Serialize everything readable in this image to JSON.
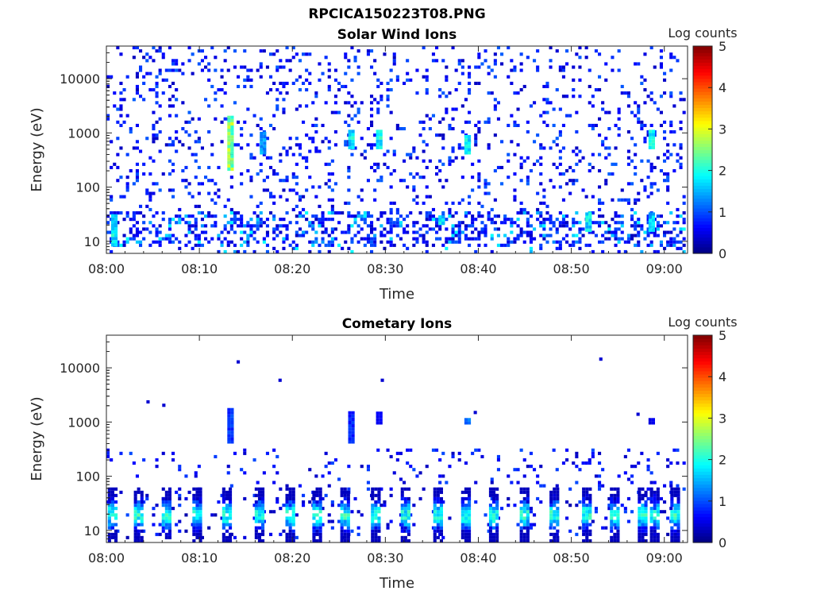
{
  "figure_title": "RPCICA150223T08.PNG",
  "chart_data": [
    {
      "type": "heatmap",
      "title": "Solar Wind Ions",
      "xlabel": "Time",
      "ylabel": "Energy (eV)",
      "x_tick_labels": [
        "08:00",
        "08:10",
        "08:20",
        "08:30",
        "08:40",
        "08:50",
        "09:00"
      ],
      "x_tick_minutes": [
        0,
        10,
        20,
        30,
        40,
        50,
        60
      ],
      "xlim_minutes": [
        0,
        62.5
      ],
      "y_scale": "log",
      "ylim_ev": [
        6,
        40000
      ],
      "y_tick_labels": [
        "10",
        "100",
        "1000",
        "10000"
      ],
      "y_tick_values": [
        10,
        100,
        1000,
        10000
      ],
      "colorbar_label": "Log counts",
      "colorbar_tick_labels": [
        "0",
        "1",
        "2",
        "3",
        "4",
        "5"
      ],
      "clim": [
        0,
        5
      ],
      "colormap": "jet",
      "background_noise_fraction_above_100ev": 0.35,
      "low_energy_background_ev": [
        8,
        30
      ],
      "features": [
        {
          "t_min": 0.5,
          "ev": [
            8,
            30
          ],
          "log_counts": 1.8
        },
        {
          "t_min": 13.0,
          "ev": [
            200,
            2000
          ],
          "log_counts": 2.5
        },
        {
          "t_min": 16.5,
          "ev": [
            400,
            1000
          ],
          "log_counts": 1.4
        },
        {
          "t_min": 26.0,
          "ev": [
            500,
            1100
          ],
          "log_counts": 1.8
        },
        {
          "t_min": 29.0,
          "ev": [
            500,
            1100
          ],
          "log_counts": 1.9
        },
        {
          "t_min": 35.7,
          "ev": [
            20,
            30
          ],
          "log_counts": 1.8
        },
        {
          "t_min": 38.5,
          "ev": [
            400,
            900
          ],
          "log_counts": 1.8
        },
        {
          "t_min": 51.5,
          "ev": [
            15,
            30
          ],
          "log_counts": 1.8
        },
        {
          "t_min": 58.3,
          "ev": [
            500,
            1000
          ],
          "log_counts": 1.8
        },
        {
          "t_min": 58.3,
          "ev": [
            15,
            30
          ],
          "log_counts": 1.6
        }
      ]
    },
    {
      "type": "heatmap",
      "title": "Cometary Ions",
      "xlabel": "Time",
      "ylabel": "Energy (eV)",
      "x_tick_labels": [
        "08:00",
        "08:10",
        "08:20",
        "08:30",
        "08:40",
        "08:50",
        "09:00"
      ],
      "x_tick_minutes": [
        0,
        10,
        20,
        30,
        40,
        50,
        60
      ],
      "xlim_minutes": [
        0,
        62.5
      ],
      "y_scale": "log",
      "ylim_ev": [
        6,
        40000
      ],
      "y_tick_labels": [
        "10",
        "100",
        "1000",
        "10000"
      ],
      "y_tick_values": [
        10,
        100,
        1000,
        10000
      ],
      "colorbar_label": "Log counts",
      "colorbar_tick_labels": [
        "0",
        "1",
        "2",
        "3",
        "4",
        "5"
      ],
      "clim": [
        0,
        5
      ],
      "colormap": "jet",
      "low_energy_bursts_minutes": [
        0.5,
        3.3,
        6.3,
        9.6,
        12.8,
        16.3,
        19.6,
        22.5,
        25.5,
        28.8,
        32.0,
        35.5,
        38.5,
        41.5,
        44.8,
        48.0,
        51.5,
        54.5,
        57.5,
        58.8,
        61.0
      ],
      "burst_energy_ev": [
        6,
        60
      ],
      "burst_peak_log_counts": 2.4,
      "isolated_points": [
        {
          "t_min": 4.3,
          "ev": 2200
        },
        {
          "t_min": 6.0,
          "ev": 1900
        },
        {
          "t_min": 14.0,
          "ev": 12000
        },
        {
          "t_min": 18.5,
          "ev": 5500
        },
        {
          "t_min": 29.5,
          "ev": 5500
        },
        {
          "t_min": 53.0,
          "ev": 13500
        },
        {
          "t_min": 57.0,
          "ev": 1300
        },
        {
          "t_min": 39.5,
          "ev": 1400
        }
      ],
      "features": [
        {
          "t_min": 13.0,
          "ev": [
            400,
            1700
          ],
          "log_counts": 0.9
        },
        {
          "t_min": 26.0,
          "ev": [
            400,
            1400
          ],
          "log_counts": 0.8
        },
        {
          "t_min": 29.0,
          "ev": [
            900,
            1400
          ],
          "log_counts": 0.6
        },
        {
          "t_min": 38.5,
          "ev": [
            900,
            1100
          ],
          "log_counts": 1.2
        },
        {
          "t_min": 58.3,
          "ev": [
            900,
            1100
          ],
          "log_counts": 0.5
        }
      ]
    }
  ]
}
